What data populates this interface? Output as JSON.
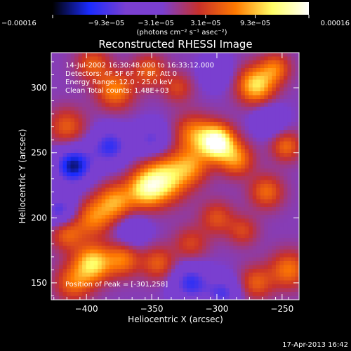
{
  "chart_data": {
    "type": "heatmap",
    "title": "Reconstructed RHESSI Image",
    "xlabel": "Heliocentric X (arcsec)",
    "ylabel": "Heliocentric Y (arcsec)",
    "xlim": [
      -427,
      -237
    ],
    "ylim": [
      137,
      327
    ],
    "x_ticks": [
      -400,
      -350,
      -300,
      -250
    ],
    "x_tick_labels": [
      "−400",
      "−350",
      "−300",
      "−250"
    ],
    "y_ticks": [
      150,
      200,
      250,
      300
    ],
    "y_tick_labels": [
      "150",
      "200",
      "250",
      "300"
    ],
    "colorbar": {
      "min": -0.00016,
      "max": 0.00016,
      "tick_values": [
        -0.00016,
        -9.3e-05,
        -3.1e-05,
        3.1e-05,
        9.3e-05,
        0.00016
      ],
      "tick_labels": [
        "−0.00016",
        "−9.3e−05",
        "−3.1e−05",
        "3.1e−05",
        "9.3e−05",
        "0.00016"
      ],
      "units": "(photons cm⁻² s⁻¹ asec⁻²)"
    },
    "annotations": [
      "14-Jul-2002 16:30:48.000 to 16:33:12.000",
      "Detectors: 4F 5F 6F 7F 8F, Att 0",
      "Energy Range: 12.0 - 25.0 keV",
      "Clean     Total counts: 1.48E+03"
    ],
    "peak_label": "Position of Peak = [-301,258]",
    "peak": {
      "x": -301,
      "y": 258
    },
    "grid": false
  },
  "footer_timestamp": "17-Apr-2013 16:42",
  "colors": {
    "colormap": [
      "#000000",
      "#1a2bff",
      "#7a3fd0",
      "#7a3fd0",
      "#c8302a",
      "#ff7a00",
      "#ffff66",
      "#ffffff"
    ],
    "background": "#000000",
    "text": "#ffffff"
  }
}
